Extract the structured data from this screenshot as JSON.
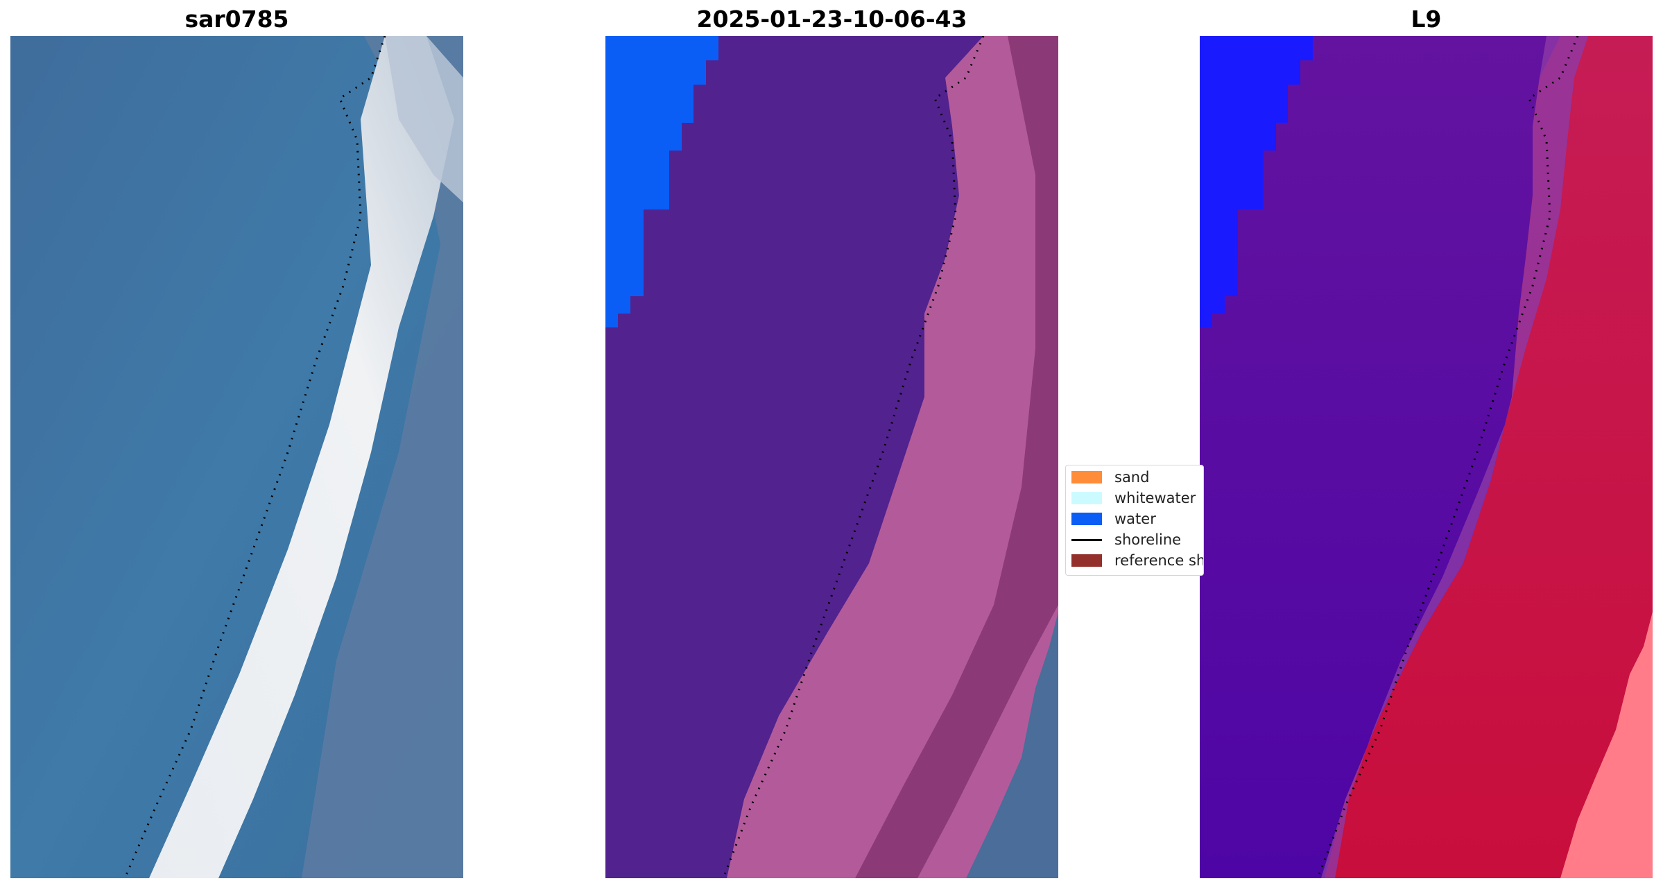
{
  "panels": [
    {
      "title": "sar0785"
    },
    {
      "title": "2025-01-23-10-06-43"
    },
    {
      "title": "L9"
    }
  ],
  "legend": {
    "items": [
      {
        "label": "sand",
        "color": "#ff8c38",
        "kind": "patch"
      },
      {
        "label": "whitewater",
        "color": "#ccfbff",
        "kind": "patch"
      },
      {
        "label": "water",
        "color": "#0b5ef5",
        "kind": "patch"
      },
      {
        "label": "shoreline",
        "color": "#000000",
        "kind": "line"
      },
      {
        "label": "reference sh",
        "color": "#93302c",
        "kind": "patch"
      }
    ]
  },
  "colors": {
    "rgb_water": "#4478a6",
    "rgb_surf": "#e8eef3",
    "class_land": "#52228f",
    "class_surf": "#b35b9a",
    "class_water": "#0b5ef5",
    "mndwi_low": "#5a0aa0",
    "mndwi_high": "#cc1040",
    "mndwi_blue": "#1a1aff"
  }
}
